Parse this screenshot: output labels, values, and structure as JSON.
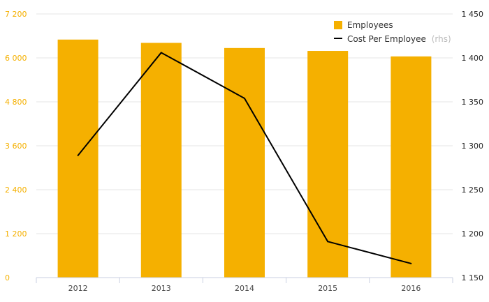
{
  "colors": {
    "bar": "#f5b000",
    "line": "#000000",
    "grid": "#e6e6e6",
    "axis": "#c9cfe0",
    "left_tick": "#f5b000",
    "right_tick": "#222222"
  },
  "chart_data": {
    "type": "bar",
    "categories": [
      "2012",
      "2013",
      "2014",
      "2015",
      "2016"
    ],
    "series": [
      {
        "name": "Employees",
        "type": "bar",
        "axis": "left",
        "values": [
          6500,
          6410,
          6270,
          6190,
          6040
        ]
      },
      {
        "name": "Cost Per Employee",
        "type": "line",
        "axis": "right",
        "values": [
          1289,
          1406,
          1354,
          1191,
          1166
        ]
      }
    ],
    "left_axis": {
      "ylim": [
        0,
        7200
      ],
      "ticks": [
        "0",
        "1 200",
        "2 400",
        "3 600",
        "4 800",
        "6 000",
        "7 200"
      ]
    },
    "right_axis": {
      "ylim": [
        1150,
        1450
      ],
      "ticks": [
        "1 150",
        "1 200",
        "1 250",
        "1 300",
        "1 350",
        "1 400",
        "1 450"
      ]
    },
    "legend": {
      "position": "top-right",
      "items": [
        "Employees",
        "Cost Per Employee"
      ],
      "line_suffix": "(rhs)"
    },
    "grid": true
  }
}
